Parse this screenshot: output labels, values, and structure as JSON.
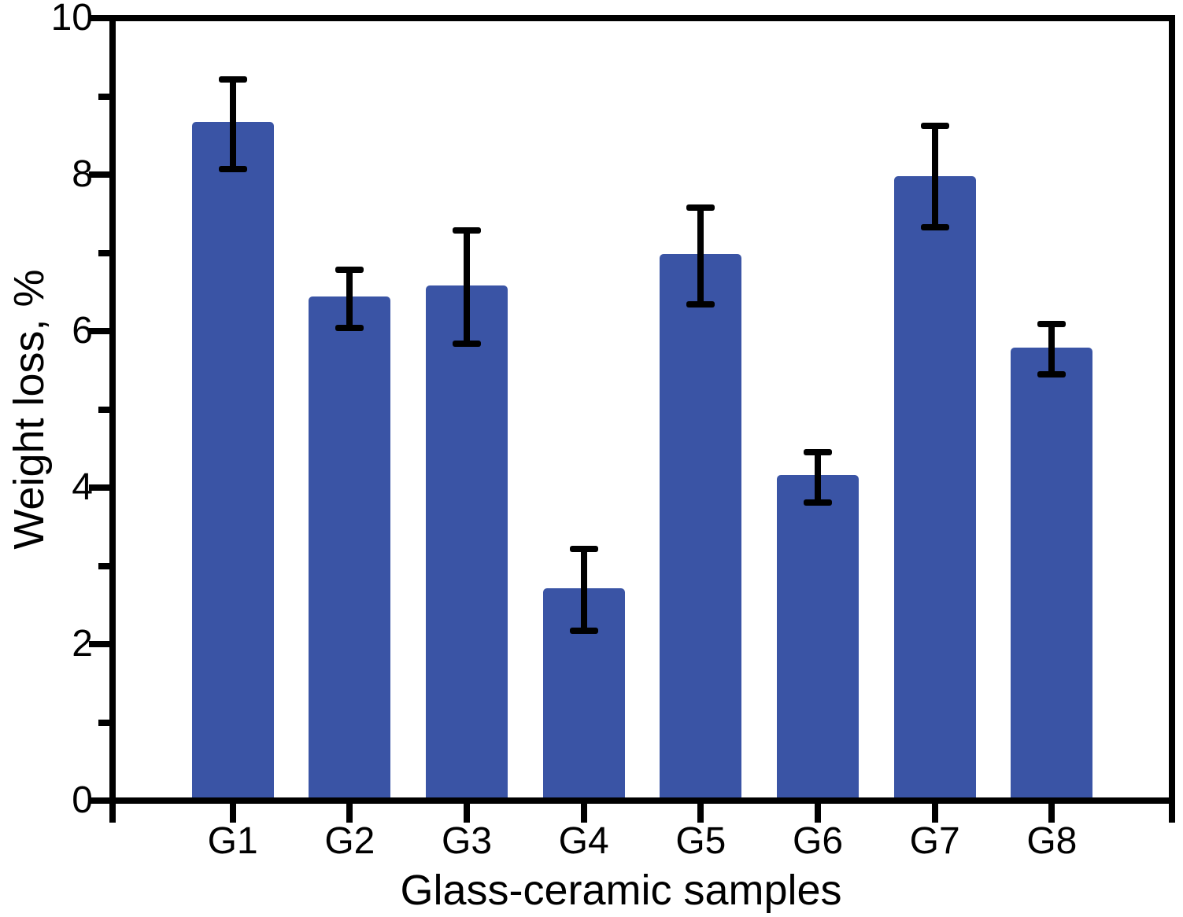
{
  "figure": {
    "background": "#FFFFFF",
    "frame_color": "#000000",
    "text_color": "#000000"
  },
  "chart_data": {
    "type": "bar",
    "title": "",
    "xlabel": "Glass-ceramic samples",
    "ylabel": "Weight loss, %",
    "categories": [
      "G1",
      "G2",
      "G3",
      "G4",
      "G5",
      "G6",
      "G7",
      "G8"
    ],
    "values": [
      8.7,
      6.45,
      6.6,
      2.7,
      7.0,
      4.15,
      8.0,
      5.8
    ],
    "error_plus": [
      0.55,
      0.35,
      0.7,
      0.5,
      0.6,
      0.3,
      0.65,
      0.3
    ],
    "error_minus": [
      0.6,
      0.4,
      0.75,
      0.55,
      0.65,
      0.35,
      0.65,
      0.35
    ],
    "ylim": [
      0,
      10
    ],
    "y_major_ticks": [
      0,
      2,
      4,
      6,
      8,
      10
    ],
    "y_minor_ticks": [
      1,
      3,
      5,
      7,
      9
    ],
    "grid": false,
    "legend": null,
    "bar_color": "#3A54A5",
    "error_bar_color": "#000000",
    "bar_width_fraction": 0.7
  }
}
